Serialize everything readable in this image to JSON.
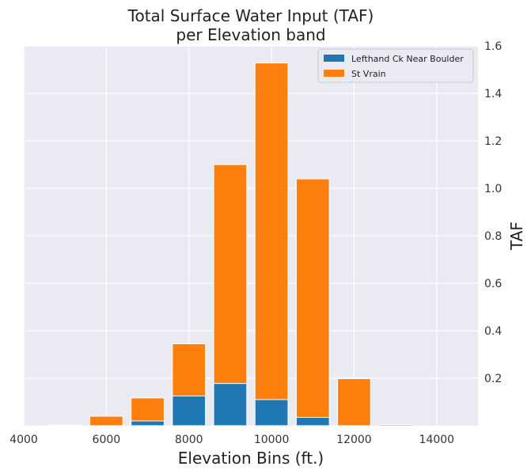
{
  "chart_data": {
    "type": "bar",
    "stacked": true,
    "title": [
      "Total Surface Water Input (TAF)",
      "per Elevation band"
    ],
    "xlabel": "Elevation Bins (ft.)",
    "ylabel": "TAF",
    "xlim": [
      4000,
      15000
    ],
    "ylim": [
      0,
      1.6
    ],
    "x_ticks": [
      4000,
      6000,
      8000,
      10000,
      12000,
      14000
    ],
    "y_ticks": [
      0.2,
      0.4,
      0.6,
      0.8,
      1.0,
      1.2,
      1.4,
      1.6
    ],
    "y_axis_side": "right",
    "bar_width": 800,
    "x": [
      5000,
      6000,
      7000,
      8000,
      9000,
      10000,
      11000,
      12000,
      13000
    ],
    "series": [
      {
        "name": "Lefthand Ck Near Boulder",
        "color": "#1f77b4",
        "values": [
          0.0,
          0.0,
          0.02,
          0.125,
          0.178,
          0.11,
          0.035,
          0.0,
          0.0
        ]
      },
      {
        "name": "St Vrain",
        "color": "#ff7f0e",
        "values": [
          0.003,
          0.04,
          0.097,
          0.22,
          0.922,
          1.418,
          1.005,
          0.198,
          0.005
        ]
      }
    ],
    "grid": true,
    "legend_position": "top-right",
    "background": "#eaeaf2"
  }
}
